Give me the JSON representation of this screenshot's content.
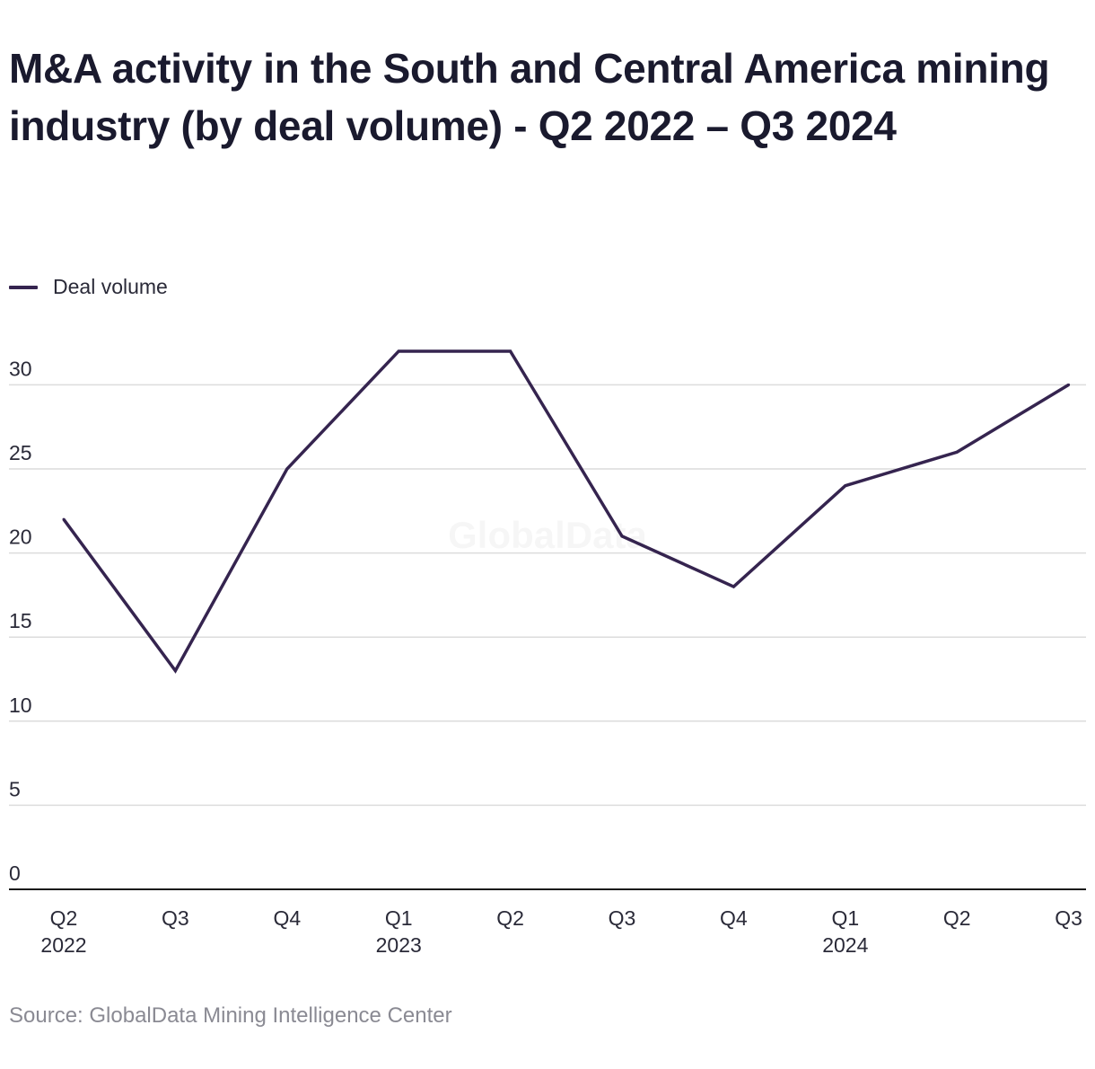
{
  "title": "M&A activity in the South and Central America mining industry (by deal volume) - Q2 2022 – Q3 2024",
  "source": "Source: GlobalData Mining Intelligence Center",
  "watermark": "GlobalData",
  "colors": {
    "line": "#35244f",
    "grid": "#dcdcdc",
    "axis": "#1a1a1a",
    "tick_text": "#2a2a38"
  },
  "chart_data": {
    "type": "line",
    "title": "M&A activity in the South and Central America mining industry (by deal volume) - Q2 2022 – Q3 2024",
    "xlabel": "",
    "ylabel": "",
    "categories": [
      "Q2 2022",
      "Q3 2022",
      "Q4 2022",
      "Q1 2023",
      "Q2 2023",
      "Q3 2023",
      "Q4 2023",
      "Q1 2024",
      "Q2 2024",
      "Q3 2024"
    ],
    "x_tick_labels": [
      {
        "quarter": "Q2",
        "year": "2022"
      },
      {
        "quarter": "Q3",
        "year": ""
      },
      {
        "quarter": "Q4",
        "year": ""
      },
      {
        "quarter": "Q1",
        "year": "2023"
      },
      {
        "quarter": "Q2",
        "year": ""
      },
      {
        "quarter": "Q3",
        "year": ""
      },
      {
        "quarter": "Q4",
        "year": ""
      },
      {
        "quarter": "Q1",
        "year": "2024"
      },
      {
        "quarter": "Q2",
        "year": ""
      },
      {
        "quarter": "Q3",
        "year": ""
      }
    ],
    "series": [
      {
        "name": "Deal volume",
        "values": [
          22,
          13,
          25,
          32,
          32,
          21,
          18,
          24,
          26,
          30
        ]
      }
    ],
    "yticks": [
      0,
      5,
      10,
      15,
      20,
      25,
      30
    ],
    "ylim": [
      0,
      32
    ],
    "grid": true,
    "legend": "top-left"
  }
}
